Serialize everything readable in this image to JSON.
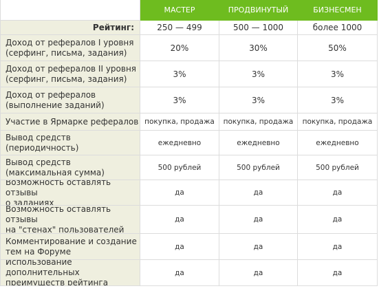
{
  "columns": [
    "МАСТЕР",
    "ПРОДВИНУТЫЙ",
    "БИЗНЕСМЕН"
  ],
  "rating": {
    "label": "Рейтинг:",
    "values": [
      "250 — 499",
      "500 — 1000",
      "более 1000"
    ]
  },
  "rows": [
    {
      "label": [
        "Доход от рефералов I уровня",
        "(серфинг, письма, задания)"
      ],
      "values": [
        "20%",
        "30%",
        "50%"
      ]
    },
    {
      "label": [
        "Доход от рефералов II уровня",
        "(серфинг, письма, задания)"
      ],
      "values": [
        "3%",
        "3%",
        "3%"
      ]
    },
    {
      "label": [
        "Доход от рефералов",
        "(выполнение заданий)"
      ],
      "values": [
        "3%",
        "3%",
        "3%"
      ]
    },
    {
      "label": [
        "Участие в Ярмарке рефералов"
      ],
      "values": [
        "покупка, продажа",
        "покупка, продажа",
        "покупка, продажа"
      ]
    },
    {
      "label": [
        "Вывод средств",
        "(периодичность)"
      ],
      "values": [
        "ежедневно",
        "ежедневно",
        "ежедневно"
      ]
    },
    {
      "label": [
        "Вывод средств",
        "(максимальная сумма)"
      ],
      "values": [
        "500 рублей",
        "500 рублей",
        "500 рублей"
      ]
    },
    {
      "label": [
        "Возможность оставлять отзывы",
        "о заданиях"
      ],
      "values": [
        "да",
        "да",
        "да"
      ]
    },
    {
      "label": [
        "Возможность оставлять отзывы",
        "на \"стенах\" пользователей"
      ],
      "values": [
        "да",
        "да",
        "да"
      ]
    },
    {
      "label": [
        "Комментирование и создание",
        "тем на Форуме"
      ],
      "values": [
        "да",
        "да",
        "да"
      ]
    },
    {
      "label": [
        "Использование дополнительных",
        "преимуществ рейтинга"
      ],
      "values": [
        "да",
        "да",
        "да"
      ]
    }
  ],
  "colors": {
    "header_bg": "#6ebc1f",
    "label_bg": "#efefdf",
    "border": "#dcdcdc",
    "text": "#333333"
  }
}
